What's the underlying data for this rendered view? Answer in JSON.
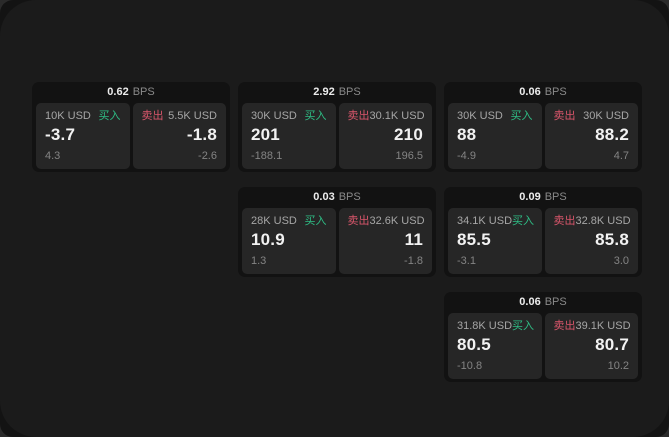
{
  "labels": {
    "bps": "BPS",
    "buy": "买入",
    "sell": "卖出"
  },
  "colors": {
    "buy": "#2ebd85",
    "sell": "#d9566b",
    "card_bg": "#121212",
    "panel_bg": "#262626",
    "page_bg": "#1b1b1b"
  },
  "cards": [
    {
      "bps": "0.62",
      "buy": {
        "amount": "10K USD",
        "value": "-3.7",
        "change": "4.3"
      },
      "sell": {
        "amount": "5.5K USD",
        "value": "-1.8",
        "change": "-2.6"
      }
    },
    {
      "bps": "2.92",
      "buy": {
        "amount": "30K USD",
        "value": "201",
        "change": "-188.1"
      },
      "sell": {
        "amount": "30.1K USD",
        "value": "210",
        "change": "196.5"
      }
    },
    {
      "bps": "0.06",
      "buy": {
        "amount": "30K USD",
        "value": "88",
        "change": "-4.9"
      },
      "sell": {
        "amount": "30K USD",
        "value": "88.2",
        "change": "4.7"
      }
    },
    {
      "bps": "0.03",
      "buy": {
        "amount": "28K USD",
        "value": "10.9",
        "change": "1.3"
      },
      "sell": {
        "amount": "32.6K USD",
        "value": "11",
        "change": "-1.8"
      }
    },
    {
      "bps": "0.09",
      "buy": {
        "amount": "34.1K USD",
        "value": "85.5",
        "change": "-3.1"
      },
      "sell": {
        "amount": "32.8K USD",
        "value": "85.8",
        "change": "3.0"
      }
    },
    {
      "bps": "0.06",
      "buy": {
        "amount": "31.8K USD",
        "value": "80.5",
        "change": "-10.8"
      },
      "sell": {
        "amount": "39.1K USD",
        "value": "80.7",
        "change": "10.2"
      }
    }
  ]
}
